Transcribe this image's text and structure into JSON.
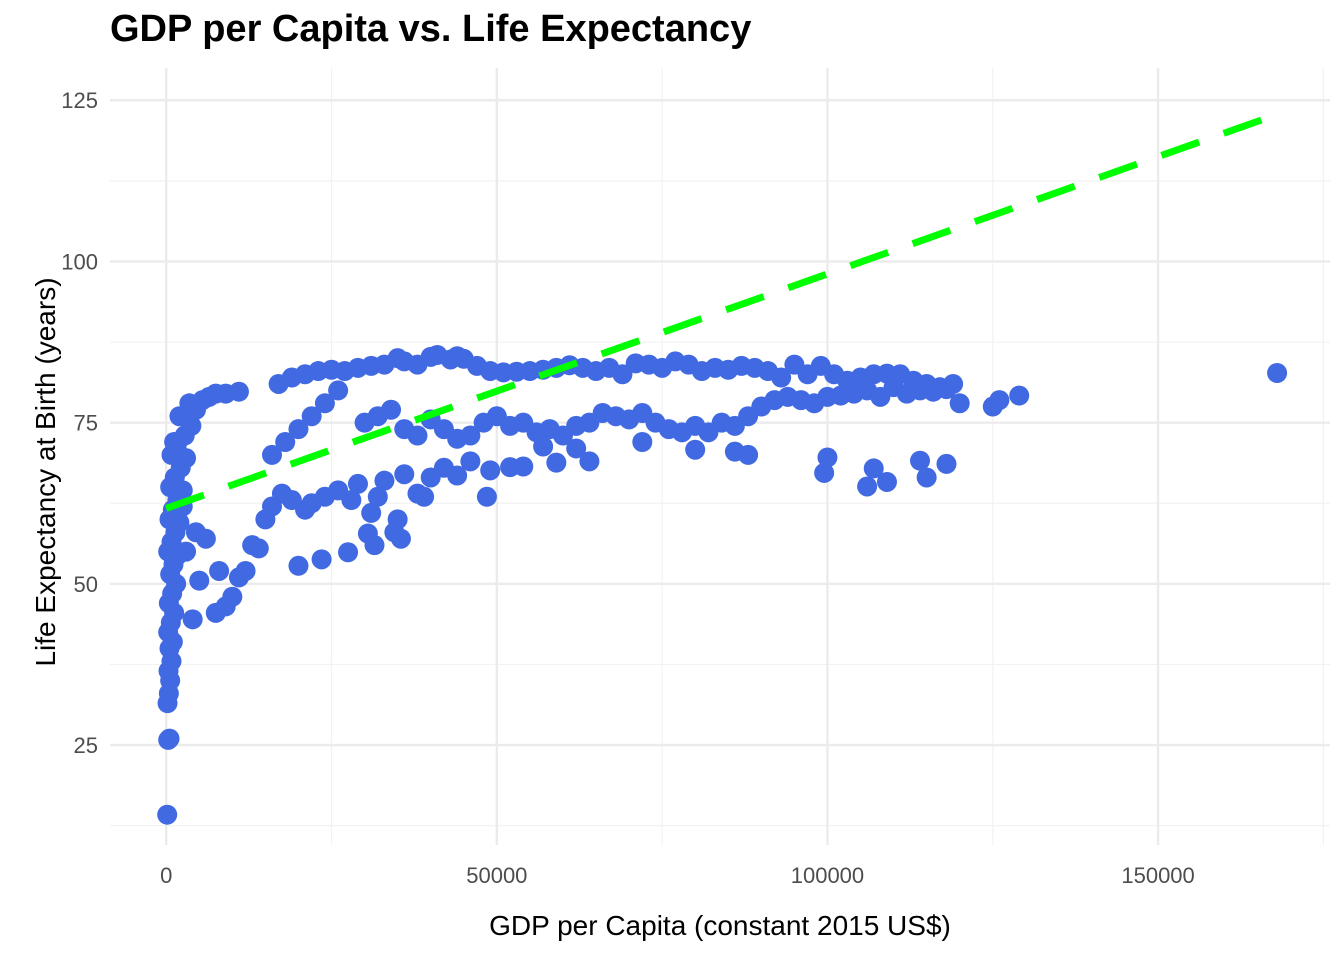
{
  "chart_data": {
    "type": "scatter",
    "title": "GDP per Capita vs. Life Expectancy",
    "xlabel": "GDP per Capita (constant 2015 US$)",
    "ylabel": "Life Expectancy at Birth (years)",
    "xlim": [
      -8500,
      176000
    ],
    "ylim": [
      9.5,
      130
    ],
    "x_ticks": [
      0,
      50000,
      100000,
      150000
    ],
    "x_tick_labels": [
      "0",
      "50000",
      "100000",
      "150000"
    ],
    "y_ticks": [
      25,
      50,
      75,
      100,
      125
    ],
    "y_tick_labels": [
      "25",
      "50",
      "75",
      "100",
      "125"
    ],
    "grid": true,
    "legend": "none",
    "point_color": "#4169E1",
    "trend_line": {
      "color": "#00FF00",
      "style": "dashed",
      "x": [
        0,
        168000
      ],
      "y": [
        61.7,
        122.8
      ]
    },
    "series": [
      {
        "points": [
          [
            150,
            14.2
          ],
          [
            300,
            25.8
          ],
          [
            500,
            26.0
          ],
          [
            200,
            31.5
          ],
          [
            400,
            33.0
          ],
          [
            600,
            35.0
          ],
          [
            350,
            36.5
          ],
          [
            800,
            38.0
          ],
          [
            500,
            40.0
          ],
          [
            1000,
            41.0
          ],
          [
            300,
            42.5
          ],
          [
            700,
            44.0
          ],
          [
            1200,
            45.5
          ],
          [
            400,
            47.0
          ],
          [
            900,
            48.5
          ],
          [
            1500,
            50.0
          ],
          [
            600,
            51.5
          ],
          [
            1100,
            53.0
          ],
          [
            1800,
            54.5
          ],
          [
            300,
            55.0
          ],
          [
            800,
            56.5
          ],
          [
            1400,
            58.0
          ],
          [
            2000,
            59.5
          ],
          [
            500,
            60.0
          ],
          [
            1000,
            61.5
          ],
          [
            1700,
            63.0
          ],
          [
            2500,
            64.5
          ],
          [
            600,
            65.0
          ],
          [
            1300,
            66.5
          ],
          [
            2200,
            68.0
          ],
          [
            3000,
            69.5
          ],
          [
            800,
            70.0
          ],
          [
            1600,
            71.5
          ],
          [
            2800,
            73.0
          ],
          [
            3800,
            74.5
          ],
          [
            1200,
            72.0
          ],
          [
            2000,
            76.0
          ],
          [
            4500,
            77.0
          ],
          [
            5500,
            78.5
          ],
          [
            6500,
            79.0
          ],
          [
            3500,
            78.0
          ],
          [
            7500,
            79.5
          ],
          [
            9000,
            79.5
          ],
          [
            11000,
            79.8
          ],
          [
            2500,
            62.0
          ],
          [
            3000,
            55.0
          ],
          [
            4000,
            44.5
          ],
          [
            4500,
            58.0
          ],
          [
            5000,
            50.5
          ],
          [
            6000,
            57.0
          ],
          [
            7500,
            45.5
          ],
          [
            8000,
            52.0
          ],
          [
            9000,
            46.5
          ],
          [
            10000,
            48.0
          ],
          [
            11000,
            51.0
          ],
          [
            12000,
            52.0
          ],
          [
            13000,
            56.0
          ],
          [
            14000,
            55.5
          ],
          [
            15000,
            60.0
          ],
          [
            20000,
            52.8
          ],
          [
            23500,
            53.8
          ],
          [
            27500,
            54.9
          ],
          [
            31500,
            56.0
          ],
          [
            30500,
            57.8
          ],
          [
            34500,
            58.0
          ],
          [
            35500,
            57.0
          ],
          [
            35000,
            60.0
          ],
          [
            31000,
            61.0
          ],
          [
            38000,
            64.0
          ],
          [
            39000,
            63.5
          ],
          [
            48500,
            63.5
          ],
          [
            49000,
            67.6
          ],
          [
            52000,
            68.1
          ],
          [
            54000,
            68.2
          ],
          [
            57000,
            71.3
          ],
          [
            59000,
            68.8
          ],
          [
            62000,
            71.0
          ],
          [
            64000,
            69.0
          ],
          [
            72000,
            72.0
          ],
          [
            80000,
            70.8
          ],
          [
            86000,
            70.5
          ],
          [
            88000,
            70.0
          ],
          [
            99500,
            67.2
          ],
          [
            100000,
            69.6
          ],
          [
            106000,
            65.1
          ],
          [
            107000,
            67.9
          ],
          [
            109000,
            65.8
          ],
          [
            114000,
            69.1
          ],
          [
            115000,
            66.5
          ],
          [
            118000,
            68.6
          ],
          [
            16000,
            62.0
          ],
          [
            17500,
            64.0
          ],
          [
            19000,
            63.0
          ],
          [
            21000,
            61.5
          ],
          [
            22000,
            62.5
          ],
          [
            24000,
            63.5
          ],
          [
            26000,
            64.5
          ],
          [
            28000,
            63.0
          ],
          [
            29000,
            65.5
          ],
          [
            32000,
            63.5
          ],
          [
            33000,
            66.0
          ],
          [
            36000,
            67.0
          ],
          [
            40000,
            66.5
          ],
          [
            42000,
            68.0
          ],
          [
            44000,
            66.8
          ],
          [
            46000,
            69.0
          ],
          [
            16000,
            70.0
          ],
          [
            18000,
            72.0
          ],
          [
            20000,
            74.0
          ],
          [
            22000,
            76.0
          ],
          [
            24000,
            78.0
          ],
          [
            26000,
            80.0
          ],
          [
            17000,
            81.0
          ],
          [
            19000,
            82.0
          ],
          [
            21000,
            82.5
          ],
          [
            23000,
            83.0
          ],
          [
            25000,
            83.2
          ],
          [
            27000,
            83.0
          ],
          [
            29000,
            83.5
          ],
          [
            31000,
            83.8
          ],
          [
            33000,
            84.0
          ],
          [
            35000,
            85.0
          ],
          [
            36000,
            84.5
          ],
          [
            38000,
            84.0
          ],
          [
            40000,
            85.2
          ],
          [
            41000,
            85.5
          ],
          [
            43000,
            84.8
          ],
          [
            44000,
            85.3
          ],
          [
            45000,
            84.9
          ],
          [
            47000,
            83.8
          ],
          [
            49000,
            83.0
          ],
          [
            51000,
            82.8
          ],
          [
            53000,
            82.9
          ],
          [
            55000,
            83.0
          ],
          [
            57000,
            83.2
          ],
          [
            59000,
            83.5
          ],
          [
            61000,
            83.9
          ],
          [
            63000,
            83.5
          ],
          [
            65000,
            83.0
          ],
          [
            67000,
            83.5
          ],
          [
            69000,
            82.5
          ],
          [
            71000,
            84.2
          ],
          [
            73000,
            84.0
          ],
          [
            75000,
            83.5
          ],
          [
            77000,
            84.5
          ],
          [
            79000,
            84.0
          ],
          [
            81000,
            83.0
          ],
          [
            83000,
            83.5
          ],
          [
            85000,
            83.2
          ],
          [
            87000,
            83.8
          ],
          [
            89000,
            83.5
          ],
          [
            91000,
            83.0
          ],
          [
            93000,
            82.0
          ],
          [
            95000,
            84.0
          ],
          [
            97000,
            82.5
          ],
          [
            99000,
            83.8
          ],
          [
            101000,
            82.5
          ],
          [
            103000,
            81.5
          ],
          [
            105000,
            82.0
          ],
          [
            107000,
            82.5
          ],
          [
            109000,
            82.6
          ],
          [
            111000,
            82.5
          ],
          [
            113000,
            81.5
          ],
          [
            115000,
            81.0
          ],
          [
            117000,
            80.5
          ],
          [
            119000,
            81.0
          ],
          [
            30000,
            75.0
          ],
          [
            32000,
            76.0
          ],
          [
            34000,
            77.0
          ],
          [
            36000,
            74.0
          ],
          [
            38000,
            73.0
          ],
          [
            40000,
            75.5
          ],
          [
            42000,
            74.0
          ],
          [
            44000,
            72.5
          ],
          [
            46000,
            73.0
          ],
          [
            48000,
            75.0
          ],
          [
            50000,
            76.0
          ],
          [
            52000,
            74.5
          ],
          [
            54000,
            75.0
          ],
          [
            56000,
            73.5
          ],
          [
            58000,
            74.0
          ],
          [
            60000,
            73.0
          ],
          [
            62000,
            74.5
          ],
          [
            64000,
            75.0
          ],
          [
            66000,
            76.5
          ],
          [
            68000,
            76.0
          ],
          [
            70000,
            75.5
          ],
          [
            72000,
            76.5
          ],
          [
            74000,
            75.0
          ],
          [
            76000,
            74.0
          ],
          [
            78000,
            73.5
          ],
          [
            80000,
            74.5
          ],
          [
            82000,
            73.5
          ],
          [
            84000,
            75.0
          ],
          [
            86000,
            74.5
          ],
          [
            88000,
            76.0
          ],
          [
            90000,
            77.5
          ],
          [
            92000,
            78.5
          ],
          [
            94000,
            79.0
          ],
          [
            96000,
            78.5
          ],
          [
            98000,
            78.0
          ],
          [
            100000,
            79.0
          ],
          [
            102000,
            79.2
          ],
          [
            104000,
            79.5
          ],
          [
            106000,
            80.0
          ],
          [
            108000,
            79.0
          ],
          [
            110000,
            80.5
          ],
          [
            112000,
            79.5
          ],
          [
            114000,
            80.0
          ],
          [
            116000,
            79.8
          ],
          [
            118000,
            80.2
          ],
          [
            120000,
            78.0
          ],
          [
            125000,
            77.5
          ],
          [
            126000,
            78.5
          ],
          [
            129000,
            79.2
          ],
          [
            168000,
            82.7
          ]
        ]
      }
    ]
  }
}
